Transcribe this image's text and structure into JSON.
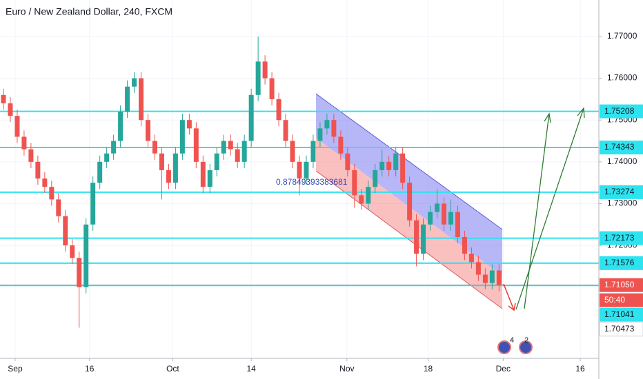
{
  "chart_data": {
    "type": "candlestick",
    "title": "Euro / New Zealand Dollar, 240, FXCM",
    "up_color": "#26a69a",
    "down_color": "#ef5350",
    "level_color": "#2de3f0",
    "grid": true,
    "ylim": [
      1.69297,
      1.77873
    ],
    "yticks": [
      {
        "value": 1.77,
        "label": "1.77000"
      },
      {
        "value": 1.76,
        "label": "1.76000"
      },
      {
        "value": 1.75,
        "label": "1.75000"
      },
      {
        "value": 1.74,
        "label": "1.74000"
      },
      {
        "value": 1.73,
        "label": "1.73000"
      },
      {
        "value": 1.72,
        "label": "1.72000"
      }
    ],
    "xlim": [
      0,
      87
    ],
    "xticks": [
      {
        "value": 2.2,
        "label": "Sep"
      },
      {
        "value": 13,
        "label": "16"
      },
      {
        "value": 25.1,
        "label": "Oct"
      },
      {
        "value": 36.5,
        "label": "14"
      },
      {
        "value": 50.4,
        "label": "Nov"
      },
      {
        "value": 62.2,
        "label": "18"
      },
      {
        "value": 73.1,
        "label": "Dec"
      },
      {
        "value": 84.3,
        "label": "16"
      }
    ],
    "candles": [
      [
        1.756,
        1.7575,
        1.7525,
        1.754
      ],
      [
        1.754,
        1.7555,
        1.7495,
        1.751
      ],
      [
        1.751,
        1.7525,
        1.7445,
        1.746
      ],
      [
        1.746,
        1.7475,
        1.7415,
        1.743
      ],
      [
        1.743,
        1.7445,
        1.7385,
        1.74
      ],
      [
        1.74,
        1.7415,
        1.7345,
        1.736
      ],
      [
        1.736,
        1.7375,
        1.7325,
        1.734
      ],
      [
        1.734,
        1.7355,
        1.7295,
        1.731
      ],
      [
        1.731,
        1.7325,
        1.7255,
        1.727
      ],
      [
        1.727,
        1.7285,
        1.7185,
        1.72
      ],
      [
        1.72,
        1.7215,
        1.7155,
        1.717
      ],
      [
        1.717,
        1.7185,
        1.7003,
        1.71
      ],
      [
        1.71,
        1.7265,
        1.7085,
        1.725
      ],
      [
        1.725,
        1.7365,
        1.7235,
        1.735
      ],
      [
        1.735,
        1.7415,
        1.7335,
        1.74
      ],
      [
        1.74,
        1.7435,
        1.7385,
        1.742
      ],
      [
        1.742,
        1.7465,
        1.7405,
        1.745
      ],
      [
        1.745,
        1.7535,
        1.7435,
        1.752
      ],
      [
        1.752,
        1.7595,
        1.7505,
        1.758
      ],
      [
        1.758,
        1.7615,
        1.7565,
        1.76
      ],
      [
        1.76,
        1.7615,
        1.7485,
        1.75
      ],
      [
        1.75,
        1.7515,
        1.7435,
        1.745
      ],
      [
        1.745,
        1.7465,
        1.7405,
        1.742
      ],
      [
        1.742,
        1.7435,
        1.731,
        1.738
      ],
      [
        1.738,
        1.7395,
        1.7335,
        1.735
      ],
      [
        1.735,
        1.7435,
        1.7335,
        1.742
      ],
      [
        1.742,
        1.7515,
        1.7405,
        1.75
      ],
      [
        1.75,
        1.7515,
        1.7465,
        1.748
      ],
      [
        1.748,
        1.7495,
        1.7385,
        1.74
      ],
      [
        1.74,
        1.7415,
        1.7325,
        1.734
      ],
      [
        1.734,
        1.7395,
        1.7325,
        1.738
      ],
      [
        1.738,
        1.7435,
        1.7365,
        1.742
      ],
      [
        1.742,
        1.7465,
        1.7405,
        1.745
      ],
      [
        1.745,
        1.7465,
        1.7415,
        1.743
      ],
      [
        1.743,
        1.7445,
        1.7385,
        1.74
      ],
      [
        1.74,
        1.7465,
        1.7385,
        1.745
      ],
      [
        1.745,
        1.7575,
        1.7435,
        1.756
      ],
      [
        1.756,
        1.77,
        1.7545,
        1.764
      ],
      [
        1.764,
        1.7655,
        1.7585,
        1.76
      ],
      [
        1.76,
        1.7615,
        1.7535,
        1.755
      ],
      [
        1.755,
        1.7565,
        1.7485,
        1.75
      ],
      [
        1.75,
        1.7515,
        1.7435,
        1.745
      ],
      [
        1.745,
        1.7465,
        1.7385,
        1.74
      ],
      [
        1.74,
        1.7415,
        1.732,
        1.736
      ],
      [
        1.736,
        1.7415,
        1.7345,
        1.74
      ],
      [
        1.74,
        1.7465,
        1.7385,
        1.745
      ],
      [
        1.745,
        1.7495,
        1.7435,
        1.748
      ],
      [
        1.748,
        1.7515,
        1.7465,
        1.75
      ],
      [
        1.75,
        1.7515,
        1.7445,
        1.746
      ],
      [
        1.746,
        1.7475,
        1.7405,
        1.742
      ],
      [
        1.742,
        1.7435,
        1.7365,
        1.738
      ],
      [
        1.738,
        1.7395,
        1.729,
        1.732
      ],
      [
        1.732,
        1.7335,
        1.7285,
        1.73
      ],
      [
        1.73,
        1.7355,
        1.7285,
        1.734
      ],
      [
        1.734,
        1.7395,
        1.7325,
        1.738
      ],
      [
        1.738,
        1.743,
        1.7365,
        1.74
      ],
      [
        1.74,
        1.7415,
        1.7365,
        1.738
      ],
      [
        1.738,
        1.7435,
        1.7365,
        1.742
      ],
      [
        1.742,
        1.7435,
        1.7335,
        1.735
      ],
      [
        1.735,
        1.7365,
        1.7245,
        1.726
      ],
      [
        1.726,
        1.7275,
        1.715,
        1.718
      ],
      [
        1.718,
        1.7265,
        1.7165,
        1.725
      ],
      [
        1.725,
        1.7295,
        1.7235,
        1.728
      ],
      [
        1.728,
        1.7335,
        1.7265,
        1.73
      ],
      [
        1.73,
        1.7315,
        1.7235,
        1.725
      ],
      [
        1.725,
        1.731,
        1.7235,
        1.728
      ],
      [
        1.728,
        1.7295,
        1.7205,
        1.722
      ],
      [
        1.722,
        1.7235,
        1.7165,
        1.718
      ],
      [
        1.718,
        1.7195,
        1.7145,
        1.716
      ],
      [
        1.716,
        1.7175,
        1.7115,
        1.713
      ],
      [
        1.713,
        1.7145,
        1.7095,
        1.711
      ],
      [
        1.711,
        1.7155,
        1.7095,
        1.714
      ],
      [
        1.714,
        1.7155,
        1.709,
        1.7105
      ]
    ],
    "levels": [
      1.75208,
      1.74343,
      1.73274,
      1.72173,
      1.71576,
      1.71041
    ],
    "last_price": {
      "value": 1.7105,
      "label": "1.71050"
    },
    "countdown": "50:40",
    "low_label": 1.70473,
    "annotation": "0.87849393383681",
    "badges": [
      "4",
      "2"
    ]
  }
}
